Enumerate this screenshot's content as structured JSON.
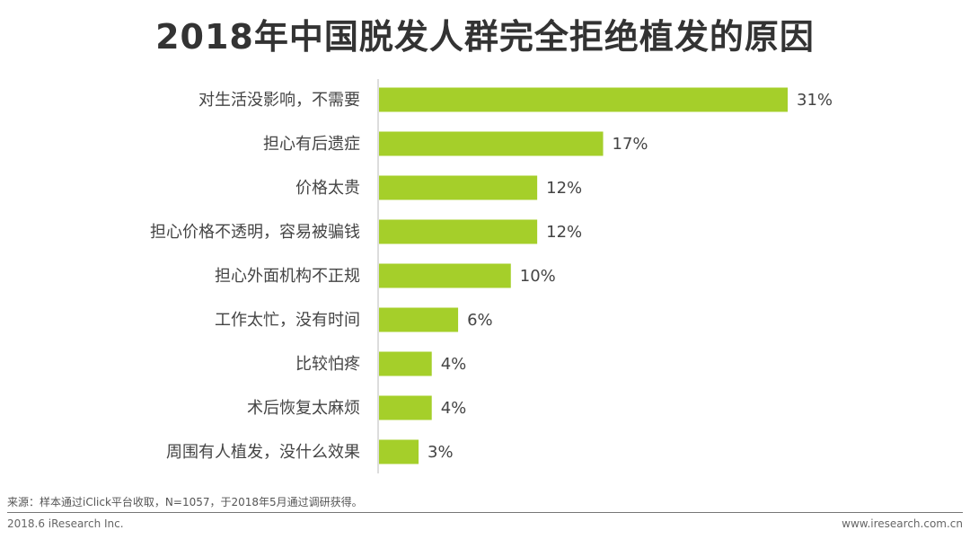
{
  "title": "2018年中国脱发人群完全拒绝植发的原因",
  "source": "来源：样本通过iClick平台收取，N=1057，于2018年5月通过调研获得。",
  "footer": {
    "left": "2018.6 iResearch Inc.",
    "right": "www.iresearch.com.cn"
  },
  "colors": {
    "bar": "#a5cf2a",
    "axis": "#bbbbbb",
    "text": "#444444"
  },
  "chart_data": {
    "type": "bar",
    "orientation": "horizontal",
    "categories": [
      "对生活没影响，不需要",
      "担心有后遗症",
      "价格太贵",
      "担心价格不透明，容易被骗钱",
      "担心外面机构不正规",
      "工作太忙，没有时间",
      "比较怕疼",
      "术后恢复太麻烦",
      "周围有人植发，没什么效果"
    ],
    "values": [
      31,
      17,
      12,
      12,
      10,
      6,
      4,
      4,
      3
    ],
    "value_labels": [
      "31%",
      "17%",
      "12%",
      "12%",
      "10%",
      "6%",
      "4%",
      "4%",
      "3%"
    ],
    "unit": "%",
    "xlim": [
      0,
      31
    ],
    "grid": false,
    "legend": "none"
  }
}
